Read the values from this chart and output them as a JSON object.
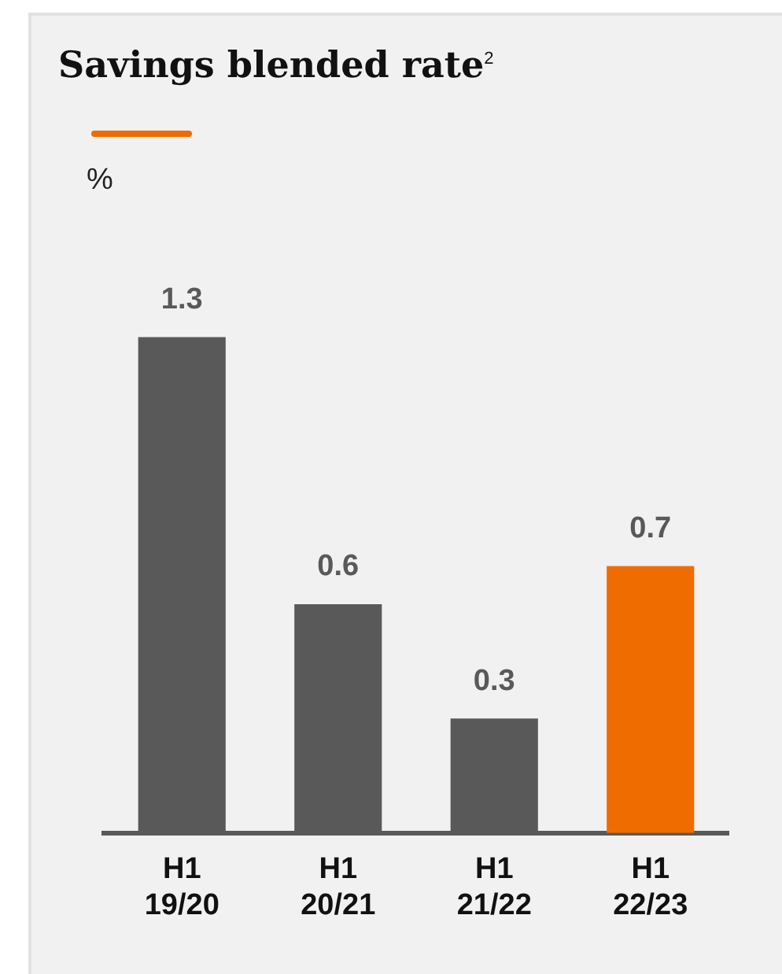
{
  "chart_data": {
    "type": "bar",
    "title": "Savings blended rate$^{2}$",
    "ylabel": "%",
    "categories": [
      "H1 19/20",
      "H1 20/21",
      "H1 21/22",
      "H1 22/23"
    ],
    "values": [
      1.3,
      0.6,
      0.3,
      0.7
    ],
    "colors": [
      "#595959",
      "#595959",
      "#595959",
      "#ef6c00"
    ],
    "data_labels": true,
    "grid": false,
    "legend": false,
    "tick_labels": "x"
  }
}
